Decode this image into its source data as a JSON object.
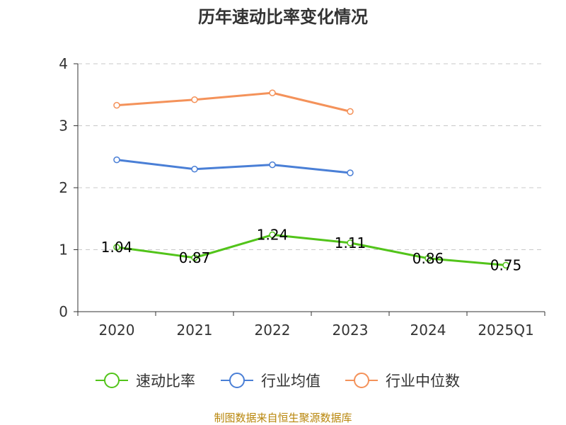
{
  "chart_data": {
    "type": "line",
    "title": "历年速动比率变化情况",
    "categories": [
      "2020",
      "2021",
      "2022",
      "2023",
      "2024",
      "2025Q1"
    ],
    "ylim": [
      0,
      4
    ],
    "yticks": [
      "0",
      "1",
      "2",
      "3",
      "4"
    ],
    "grid": true,
    "legend_position": "bottom",
    "series": [
      {
        "name": "速动比率",
        "color": "#52c41a",
        "values": [
          1.04,
          0.87,
          1.24,
          1.11,
          0.86,
          0.75
        ],
        "labels": [
          "1.04",
          "0.87",
          "1.24",
          "1.11",
          "0.86",
          "0.75"
        ]
      },
      {
        "name": "行业均值",
        "color": "#4a7fd6",
        "values": [
          2.45,
          2.3,
          2.37,
          2.24,
          null,
          null
        ]
      },
      {
        "name": "行业中位数",
        "color": "#f4925a",
        "values": [
          3.33,
          3.42,
          3.53,
          3.23,
          null,
          null
        ]
      }
    ],
    "source": "制图数据来自恒生聚源数据库"
  }
}
